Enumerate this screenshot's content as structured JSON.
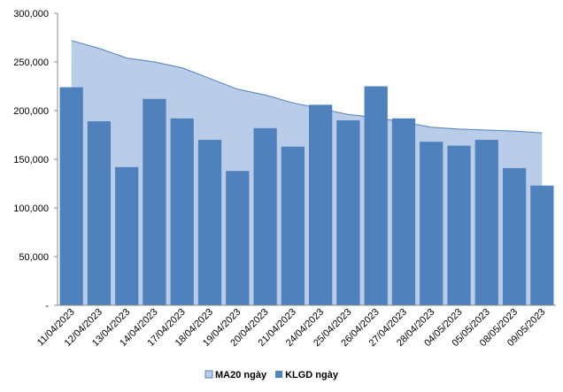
{
  "chart_data": {
    "type": "bar_area",
    "categories": [
      "11/04/2023",
      "12/04/2023",
      "13/04/2023",
      "14/04/2023",
      "17/04/2023",
      "18/04/2023",
      "19/04/2023",
      "20/04/2023",
      "21/04/2023",
      "24/04/2023",
      "25/04/2023",
      "26/04/2023",
      "27/04/2023",
      "28/04/2023",
      "04/05/2023",
      "05/05/2023",
      "08/05/2023",
      "09/05/2023"
    ],
    "series": [
      {
        "name": "MA20 ngày",
        "kind": "area",
        "color": "#b9cde8",
        "values": [
          272000,
          264000,
          254000,
          250000,
          244000,
          233000,
          222000,
          216000,
          208000,
          202000,
          196000,
          193000,
          188000,
          183000,
          181000,
          180000,
          179000,
          177000
        ]
      },
      {
        "name": "KLGD ngày",
        "kind": "bar",
        "color": "#4f81bd",
        "values": [
          224000,
          189000,
          142000,
          212000,
          192000,
          170000,
          138000,
          182000,
          163000,
          206000,
          190000,
          225000,
          192000,
          168000,
          164000,
          170000,
          141000,
          123000
        ]
      }
    ],
    "ylim": [
      0,
      300000
    ],
    "yticks": [
      {
        "value": 0,
        "label": "-"
      },
      {
        "value": 50000,
        "label": "50,000"
      },
      {
        "value": 100000,
        "label": "100,000"
      },
      {
        "value": 150000,
        "label": "150,000"
      },
      {
        "value": 200000,
        "label": "200,000"
      },
      {
        "value": 250000,
        "label": "250,000"
      },
      {
        "value": 300000,
        "label": "300,000"
      }
    ],
    "legend": "bottom"
  }
}
